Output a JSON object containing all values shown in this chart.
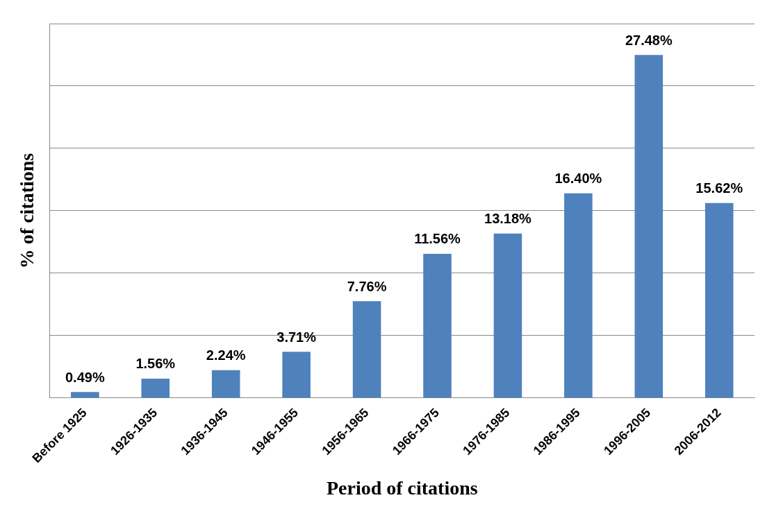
{
  "chart_data": {
    "type": "bar",
    "xlabel": "Period of citations",
    "ylabel": "% of citations",
    "categories": [
      "Before 1925",
      "1926-1935",
      "1936-1945",
      "1946-1955",
      "1956-1965",
      "1966-1975",
      "1976-1985",
      "1986-1995",
      "1996-2005",
      "2006-2012"
    ],
    "values": [
      0.49,
      1.56,
      2.24,
      3.71,
      7.76,
      11.56,
      13.18,
      16.4,
      27.48,
      15.62
    ],
    "value_labels": [
      "0.49%",
      "1.56%",
      "2.24%",
      "3.71%",
      "7.76%",
      "11.56%",
      "13.18%",
      "16.40%",
      "27.48%",
      "15.62%"
    ],
    "color": "#4f81bd",
    "ylim": [
      0,
      30
    ],
    "yticks": [
      {
        "value": 0,
        "label": null
      },
      {
        "value": 5,
        "label": null
      },
      {
        "value": 10,
        "label": null
      },
      {
        "value": 15,
        "label": null
      },
      {
        "value": 20,
        "label": null
      },
      {
        "value": 25,
        "label": null
      },
      {
        "value": 30,
        "label": null
      }
    ],
    "grid": "y",
    "tick_labels": "x"
  }
}
